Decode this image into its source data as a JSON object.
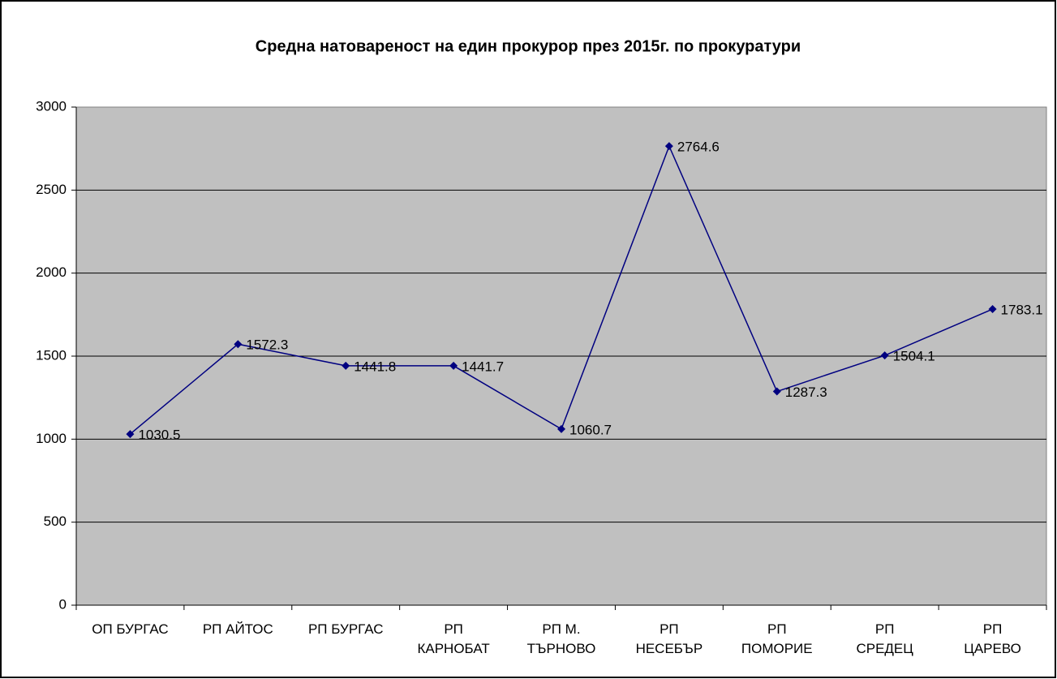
{
  "chart_data": {
    "type": "line",
    "title": "Средна натовареност на един прокурор през 2015г. по прокуратури",
    "categories": [
      "ОП БУРГАС",
      "РП АЙТОС",
      "РП БУРГАС",
      "РП\nКАРНОБАТ",
      "РП М.\nТЪРНОВО",
      "РП\nНЕСЕБЪР",
      "РП\nПОМОРИЕ",
      "РП\nСРЕДЕЦ",
      "РП\nЦАРЕВО"
    ],
    "series": [
      {
        "name": "Средна натовареност",
        "color": "#000080",
        "values": [
          1030.5,
          1572.3,
          1441.8,
          1441.7,
          1060.7,
          2764.6,
          1287.3,
          1504.1,
          1783.1
        ]
      }
    ],
    "ylim": [
      0,
      3000
    ],
    "yticks": [
      0,
      500,
      1000,
      1500,
      2000,
      2500,
      3000
    ],
    "grid": true
  }
}
